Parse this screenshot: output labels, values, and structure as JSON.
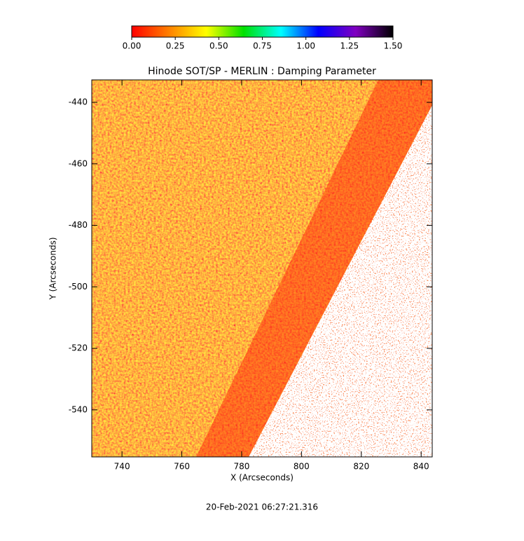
{
  "chart_data": {
    "type": "image",
    "title": "Hinode SOT/SP - MERLIN : Damping Parameter",
    "x_label": "X (Arcseconds)",
    "y_label": "Y (Arcseconds)",
    "footer": "20-Feb-2021 06:27:21.316",
    "xlim": [
      729.9,
      843.7
    ],
    "ylim": [
      -555.3,
      -432.7
    ],
    "xticks": [
      740,
      760,
      780,
      800,
      820,
      840
    ],
    "yticks": [
      -440,
      -460,
      -480,
      -500,
      -520,
      -540
    ],
    "colorbar": {
      "lim": [
        0,
        1.5
      ],
      "ticks": [
        {
          "value": 0,
          "label": "0.00"
        },
        {
          "value": 0.25,
          "label": "0.25"
        },
        {
          "value": 0.5,
          "label": "0.50"
        },
        {
          "value": 0.75,
          "label": "0.75"
        },
        {
          "value": 1,
          "label": "1.00"
        },
        {
          "value": 1.25,
          "label": "1.25"
        },
        {
          "value": 1.5,
          "label": "1.50"
        }
      ],
      "colors": [
        "#ff0000",
        "#ff8000",
        "#ffff00",
        "#00e000",
        "#00ffff",
        "#0000ff",
        "#8000c0",
        "#000000"
      ]
    }
  }
}
